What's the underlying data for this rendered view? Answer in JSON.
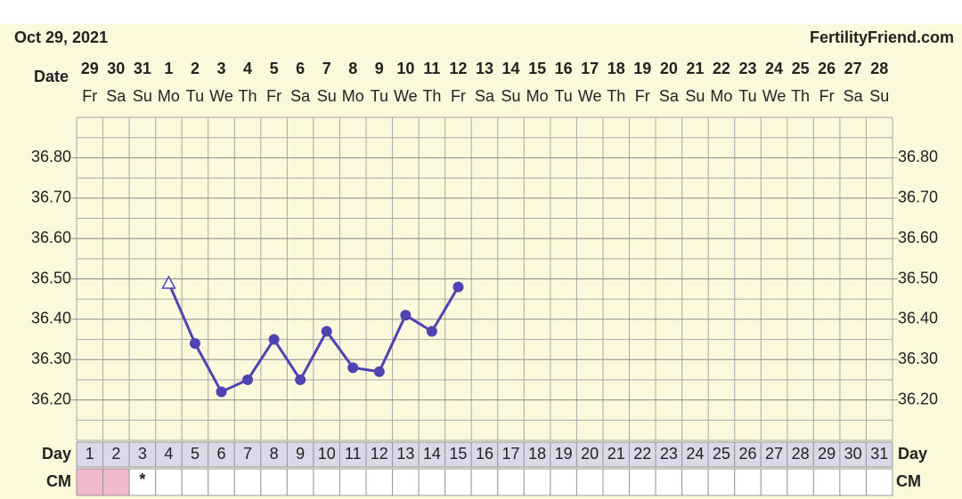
{
  "chart_data": {
    "type": "line",
    "date_header": "Oct 29, 2021",
    "site": "FertilityFriend.com",
    "date_label": "Date",
    "dates": [
      29,
      30,
      31,
      1,
      2,
      3,
      4,
      5,
      6,
      7,
      8,
      9,
      10,
      11,
      12,
      13,
      14,
      15,
      16,
      17,
      18,
      19,
      20,
      21,
      22,
      23,
      24,
      25,
      26,
      27,
      28
    ],
    "weekdays": [
      "Fr",
      "Sa",
      "Su",
      "Mo",
      "Tu",
      "We",
      "Th",
      "Fr",
      "Sa",
      "Su",
      "Mo",
      "Tu",
      "We",
      "Th",
      "Fr",
      "Sa",
      "Su",
      "Mo",
      "Tu",
      "We",
      "Th",
      "Fr",
      "Sa",
      "Su",
      "Mo",
      "Tu",
      "We",
      "Th",
      "Fr",
      "Sa",
      "Su"
    ],
    "day_label": "Day",
    "categories": [
      1,
      2,
      3,
      4,
      5,
      6,
      7,
      8,
      9,
      10,
      11,
      12,
      13,
      14,
      15,
      16,
      17,
      18,
      19,
      20,
      21,
      22,
      23,
      24,
      25,
      26,
      27,
      28,
      29,
      30,
      31
    ],
    "series": [
      {
        "color": "#4f43b3",
        "values": [
          null,
          null,
          null,
          36.49,
          36.34,
          36.22,
          36.25,
          36.35,
          36.25,
          36.37,
          36.28,
          36.27,
          36.41,
          36.37,
          36.48,
          null,
          null,
          null,
          null,
          null,
          null,
          null,
          null,
          null,
          null,
          null,
          null,
          null,
          null,
          null,
          null
        ]
      }
    ],
    "ylim": [
      36.1,
      36.9
    ],
    "yticks": [
      {
        "value": 36.2,
        "label": "36.20"
      },
      {
        "value": 36.3,
        "label": "36.30"
      },
      {
        "value": 36.4,
        "label": "36.40"
      },
      {
        "value": 36.5,
        "label": "36.50"
      },
      {
        "value": 36.6,
        "label": "36.60"
      },
      {
        "value": 36.7,
        "label": "36.70"
      },
      {
        "value": 36.8,
        "label": "36.80"
      }
    ],
    "minor_yticks": [
      36.1,
      36.15,
      36.25,
      36.35,
      36.45,
      36.55,
      36.65,
      36.75,
      36.85,
      36.9
    ],
    "grid": true,
    "cm_label": "CM",
    "cm": [
      null,
      null,
      "*",
      null,
      null,
      null,
      null,
      null,
      null,
      null,
      null,
      null,
      null,
      null,
      null,
      null,
      null,
      null,
      null,
      null,
      null,
      null,
      null,
      null,
      null,
      null,
      null,
      null,
      null,
      null,
      null
    ],
    "cm_colors": [
      "#f2b8cb",
      "#f2b8cb",
      null,
      null,
      null,
      null,
      null,
      null,
      null,
      null,
      null,
      null,
      null,
      null,
      null,
      null,
      null,
      null,
      null,
      null,
      null,
      null,
      null,
      null,
      null,
      null,
      null,
      null,
      null,
      null,
      null
    ]
  }
}
